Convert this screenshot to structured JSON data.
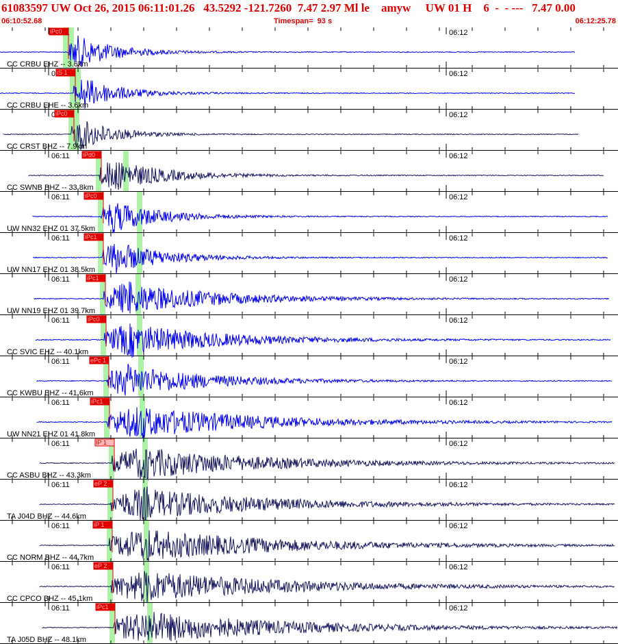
{
  "header": {
    "title": "61083597 UW Oct 26, 2015 06:11:01.26   43.5292 -121.7260  7.47 2.97 Ml le    amyw     UW 01 H    6  -  - ---   7.47 0.00",
    "start_time": "06:10:52.68",
    "timespan": "Timespan=  93 s",
    "end_time": "06:12:25.78"
  },
  "time_ticks": [
    "06:11",
    "06:12"
  ],
  "colors": {
    "title": "#e00000",
    "trace_blue": "#0000ee",
    "trace_navy": "#161660",
    "pick_red": "#e00000",
    "pick_light": "#ffb8b8",
    "window_green": "#aef2a8"
  },
  "channels": [
    {
      "label": "CC CRBU EHZ -- 3.6km",
      "pick": "iPc0",
      "color": "blue"
    },
    {
      "label": "CC CRBU EHE -- 3.6km",
      "pick": "iS 1",
      "color": "blue"
    },
    {
      "label": "CC CRST BHZ -- 7.9km",
      "pick": "iPc0",
      "color": "navy"
    },
    {
      "label": "CC SWNB BHZ -- 33.8km",
      "pick": "iPd0",
      "color": "navy"
    },
    {
      "label": "UW NN32 EHZ 01 37.5km",
      "pick": "iPc0",
      "color": "blue"
    },
    {
      "label": "UW NN17 EHZ 01 38.5km",
      "pick": "iPc1",
      "color": "blue"
    },
    {
      "label": "UW NN19 EHZ 01 39.7km",
      "pick": "iPc1",
      "color": "blue"
    },
    {
      "label": "CC SVIC EHZ -- 40.1km",
      "pick": "iPc0",
      "color": "blue"
    },
    {
      "label": "CC KWBU EHZ -- 41.6km",
      "pick": "ePc 1",
      "color": "blue"
    },
    {
      "label": "UW NN21 EHZ 01 41.8km",
      "pick": "iPc1",
      "color": "blue"
    },
    {
      "label": "CC ASBU BHZ -- 43.3km",
      "pick": "IP 1",
      "color": "navy"
    },
    {
      "label": "TA J04D BHZ -- 44.6km",
      "pick": "eP 2",
      "color": "navy"
    },
    {
      "label": "CC NORM BHZ -- 44.7km",
      "pick": "iP 1",
      "color": "navy"
    },
    {
      "label": "CC CPCO BHZ -- 45.1km",
      "pick": "eP 2",
      "color": "navy"
    },
    {
      "label": "TA J05D BHZ -- 48.1km",
      "pick": "iPc1",
      "color": "navy"
    }
  ]
}
